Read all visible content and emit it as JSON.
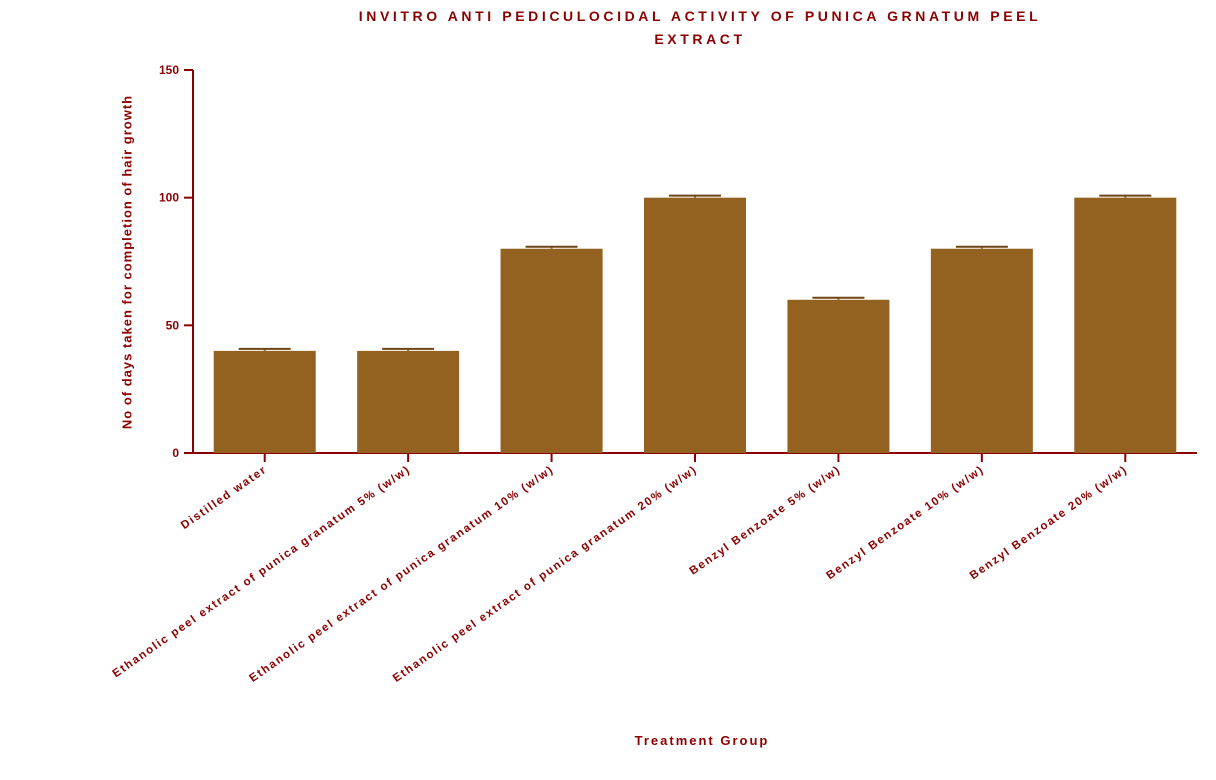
{
  "chart_data": {
    "type": "bar",
    "title_lines": [
      "INVITRO ANTI PEDICULOCIDAL ACTIVITY OF PUNICA GRNATUM PEEL",
      "EXTRACT"
    ],
    "xlabel": "Treatment Group",
    "ylabel": "No of days taken for completion of hair growth",
    "categories": [
      "Distilled water",
      "Ethanolic peel extract of punica granatum 5% (w/w)",
      "Ethanolic peel extract of punica granatum 10% (w/w)",
      "Ethanolic peel extract of punica granatum 20% (w/w)",
      "Benzyl Benzoate  5% (w/w)",
      "Benzyl Benzoate  10% (w/w)",
      "Benzyl Benzoate  20% (w/w)"
    ],
    "values": [
      40,
      40,
      80,
      100,
      60,
      80,
      100
    ],
    "errors": [
      0.8,
      0.8,
      0.8,
      0.8,
      0.8,
      0.8,
      0.8
    ],
    "ylim": [
      0,
      150
    ],
    "yticks": [
      "0",
      "50",
      "100",
      "150"
    ],
    "grid": false,
    "colors": {
      "bar": "#946220",
      "axis": "#8b0000",
      "text": "#8b0000"
    }
  }
}
